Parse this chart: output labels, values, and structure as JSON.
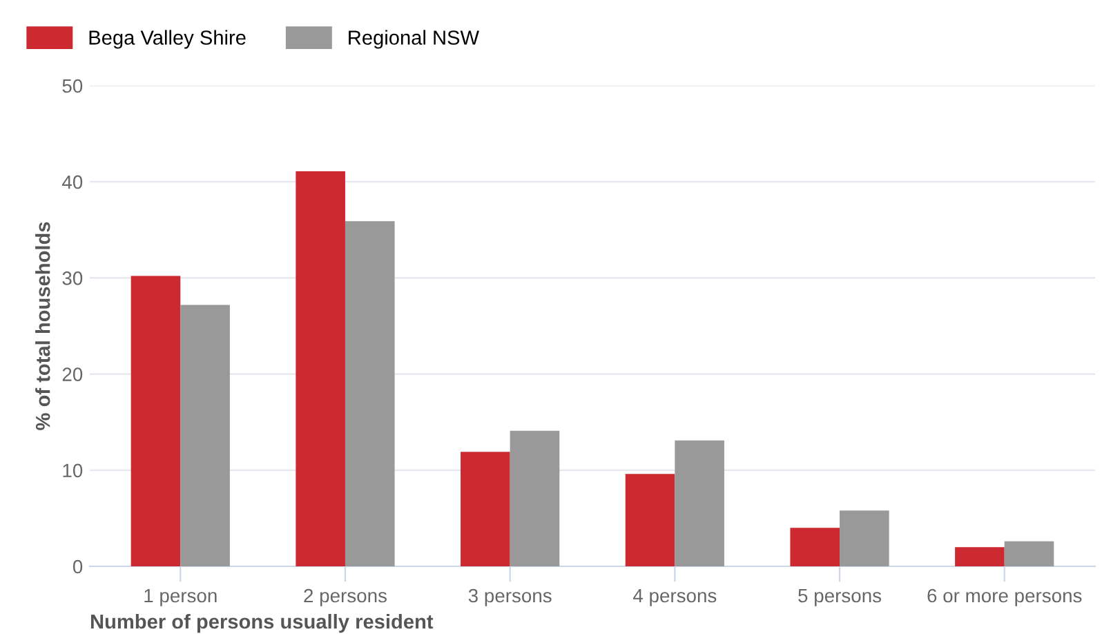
{
  "chart_data": {
    "type": "bar",
    "xlabel": "Number of persons usually resident",
    "ylabel": "% of total households",
    "categories": [
      "1 person",
      "2 persons",
      "3 persons",
      "4 persons",
      "5 persons",
      "6 or more persons"
    ],
    "series": [
      {
        "name": "Bega Valley Shire",
        "color": "#cc2a30",
        "values": [
          30.2,
          41.1,
          11.9,
          9.6,
          4.0,
          2.0
        ]
      },
      {
        "name": "Regional NSW",
        "color": "#999999",
        "values": [
          27.2,
          35.9,
          14.1,
          13.1,
          5.8,
          2.6
        ]
      }
    ],
    "ylim": [
      0,
      50
    ],
    "yticks": [
      0,
      10,
      20,
      30,
      40,
      50
    ],
    "grid": "y",
    "legend": "top left"
  }
}
